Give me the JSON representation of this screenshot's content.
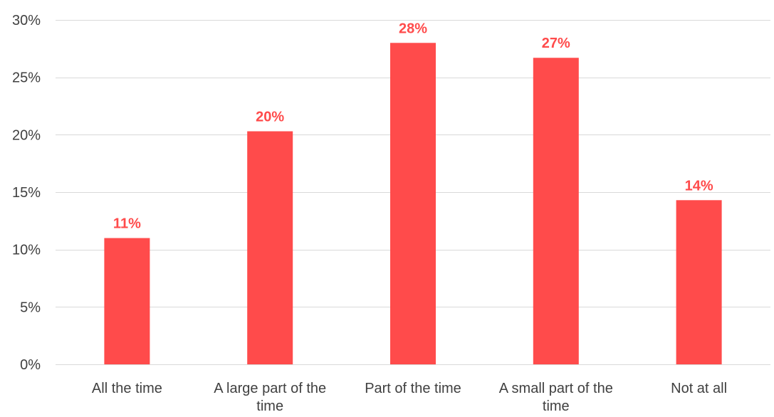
{
  "chart_data": {
    "type": "bar",
    "title": "",
    "xlabel": "",
    "ylabel": "",
    "categories": [
      [
        "All the time"
      ],
      [
        "A large part of the",
        "time"
      ],
      [
        "Part of the time"
      ],
      [
        "A small part of the",
        "time"
      ],
      [
        "Not at all"
      ]
    ],
    "values": [
      11,
      20.3,
      28,
      26.7,
      14.3
    ],
    "data_labels": [
      "11%",
      "20%",
      "28%",
      "27%",
      "14%"
    ],
    "ylim": [
      0,
      30
    ],
    "yticks": [
      0,
      5,
      10,
      15,
      20,
      25,
      30
    ],
    "ytick_labels": [
      "0%",
      "5%",
      "10%",
      "15%",
      "20%",
      "25%",
      "30%"
    ],
    "grid": true,
    "legend": "none",
    "colors": {
      "bar": "#ff4b4b",
      "data_label": "#ff4b4b",
      "grid": "#d9d9d9",
      "text": "#404040"
    }
  }
}
